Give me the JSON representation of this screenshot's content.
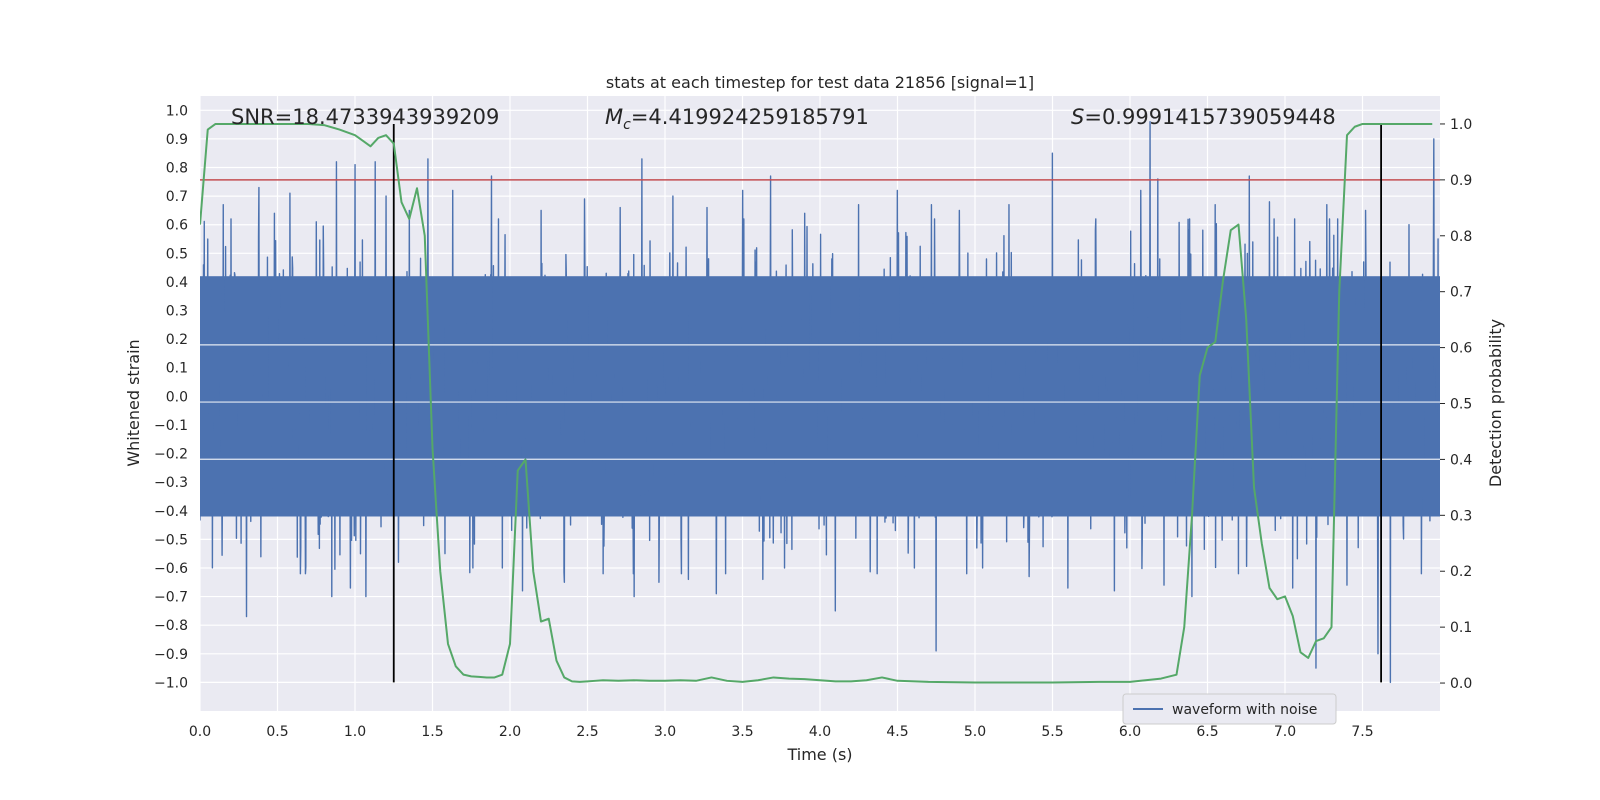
{
  "chart_data": {
    "type": "line",
    "title": "stats at each timestep for test data 21856 [signal=1]",
    "xlabel": "Time (s)",
    "ylabel_left": "Whitened strain",
    "ylabel_right": "Detection probability",
    "xlim": [
      0.0,
      8.0
    ],
    "ylim_left": [
      -1.1,
      1.05
    ],
    "ylim_right": [
      -0.05,
      1.05
    ],
    "x_ticks": [
      0.0,
      0.5,
      1.0,
      1.5,
      2.0,
      2.5,
      3.0,
      3.5,
      4.0,
      4.5,
      5.0,
      5.5,
      6.0,
      6.5,
      7.0,
      7.5
    ],
    "x_tick_labels": [
      "0.0",
      "0.5",
      "1.0",
      "1.5",
      "2.0",
      "2.5",
      "3.0",
      "3.5",
      "4.0",
      "4.5",
      "5.0",
      "5.5",
      "6.0",
      "6.5",
      "7.0",
      "7.5"
    ],
    "y_left_ticks": [
      -1.0,
      -0.9,
      -0.8,
      -0.7,
      -0.6,
      -0.5,
      -0.4,
      -0.3,
      -0.2,
      -0.1,
      0.0,
      0.1,
      0.2,
      0.3,
      0.4,
      0.5,
      0.6,
      0.7,
      0.8,
      0.9,
      1.0
    ],
    "y_left_tick_labels": [
      "−1.0",
      "−0.9",
      "−0.8",
      "−0.7",
      "−0.6",
      "−0.5",
      "−0.4",
      "−0.3",
      "−0.2",
      "−0.1",
      "0.0",
      "0.1",
      "0.2",
      "0.3",
      "0.4",
      "0.5",
      "0.6",
      "0.7",
      "0.8",
      "0.9",
      "1.0"
    ],
    "y_right_ticks": [
      0.0,
      0.1,
      0.2,
      0.3,
      0.4,
      0.5,
      0.6,
      0.7,
      0.8,
      0.9,
      1.0
    ],
    "y_right_tick_labels": [
      "0.0",
      "0.1",
      "0.2",
      "0.3",
      "0.4",
      "0.5",
      "0.6",
      "0.7",
      "0.8",
      "0.9",
      "1.0"
    ],
    "grid": true,
    "legend": {
      "placement": "lower-right",
      "entries": [
        "waveform with noise"
      ]
    },
    "annotations": {
      "snr": "SNR=18.4733943939209",
      "mc_symbol": "M",
      "mc_sub": "c",
      "mc_value": "=4.419924259185791",
      "s_symbol": "S",
      "s_value": "=0.9991415739059448"
    },
    "threshold_line": {
      "axis": "right",
      "y": 0.9,
      "color": "#c44e52"
    },
    "vertical_lines": [
      1.25,
      7.62
    ],
    "waveform": {
      "name": "waveform with noise",
      "color": "#4c72b0",
      "t_range": [
        0.0,
        8.0
      ],
      "core_band": [
        -0.42,
        0.42
      ],
      "spikes": [
        {
          "t": 0.05,
          "y": 0.55
        },
        {
          "t": 0.15,
          "y": 0.67
        },
        {
          "t": 0.2,
          "y": 0.62
        },
        {
          "t": 0.3,
          "y": -0.77
        },
        {
          "t": 0.38,
          "y": 0.73
        },
        {
          "t": 0.48,
          "y": 0.64
        },
        {
          "t": 0.58,
          "y": 0.71
        },
        {
          "t": 0.68,
          "y": -0.62
        },
        {
          "t": 0.75,
          "y": 0.61
        },
        {
          "t": 0.85,
          "y": -0.7
        },
        {
          "t": 0.88,
          "y": 0.82
        },
        {
          "t": 0.97,
          "y": -0.67
        },
        {
          "t": 1.0,
          "y": 0.81
        },
        {
          "t": 1.07,
          "y": -0.7
        },
        {
          "t": 1.13,
          "y": 0.82
        },
        {
          "t": 1.2,
          "y": 0.7
        },
        {
          "t": 1.28,
          "y": -0.58
        },
        {
          "t": 1.35,
          "y": 0.65
        },
        {
          "t": 1.47,
          "y": 0.83
        },
        {
          "t": 1.58,
          "y": -0.55
        },
        {
          "t": 1.63,
          "y": 0.72
        },
        {
          "t": 1.76,
          "y": -0.6
        },
        {
          "t": 1.88,
          "y": 0.77
        },
        {
          "t": 1.95,
          "y": -0.6
        },
        {
          "t": 2.08,
          "y": -0.68
        },
        {
          "t": 2.2,
          "y": 0.65
        },
        {
          "t": 2.35,
          "y": -0.65
        },
        {
          "t": 2.48,
          "y": 0.69
        },
        {
          "t": 2.6,
          "y": -0.62
        },
        {
          "t": 2.71,
          "y": 0.66
        },
        {
          "t": 2.8,
          "y": -0.7
        },
        {
          "t": 2.85,
          "y": 0.83
        },
        {
          "t": 2.96,
          "y": -0.65
        },
        {
          "t": 3.05,
          "y": 0.7
        },
        {
          "t": 3.15,
          "y": -0.64
        },
        {
          "t": 3.27,
          "y": 0.66
        },
        {
          "t": 3.33,
          "y": -0.69
        },
        {
          "t": 3.5,
          "y": 0.72
        },
        {
          "t": 3.63,
          "y": -0.64
        },
        {
          "t": 3.68,
          "y": 0.77
        },
        {
          "t": 3.77,
          "y": -0.6
        },
        {
          "t": 3.9,
          "y": 0.64
        },
        {
          "t": 4.1,
          "y": -0.75
        },
        {
          "t": 4.25,
          "y": 0.67
        },
        {
          "t": 4.37,
          "y": -0.62
        },
        {
          "t": 4.5,
          "y": 0.72
        },
        {
          "t": 4.61,
          "y": -0.6
        },
        {
          "t": 4.72,
          "y": 0.67
        },
        {
          "t": 4.75,
          "y": -0.89
        },
        {
          "t": 4.9,
          "y": 0.65
        },
        {
          "t": 5.05,
          "y": -0.6
        },
        {
          "t": 5.22,
          "y": 0.67
        },
        {
          "t": 5.35,
          "y": -0.63
        },
        {
          "t": 5.5,
          "y": 0.85
        },
        {
          "t": 5.6,
          "y": -0.67
        },
        {
          "t": 5.78,
          "y": 0.62
        },
        {
          "t": 5.9,
          "y": -0.68
        },
        {
          "t": 6.07,
          "y": 0.72
        },
        {
          "t": 6.13,
          "y": 0.96
        },
        {
          "t": 6.18,
          "y": 0.76
        },
        {
          "t": 6.22,
          "y": -0.66
        },
        {
          "t": 6.4,
          "y": -0.7
        },
        {
          "t": 6.55,
          "y": 0.67
        },
        {
          "t": 6.7,
          "y": -0.62
        },
        {
          "t": 6.77,
          "y": 0.77
        },
        {
          "t": 6.9,
          "y": 0.68
        },
        {
          "t": 7.05,
          "y": -0.67
        },
        {
          "t": 7.2,
          "y": -0.95
        },
        {
          "t": 7.27,
          "y": 0.67
        },
        {
          "t": 7.4,
          "y": -0.66
        },
        {
          "t": 7.52,
          "y": 0.65
        },
        {
          "t": 7.6,
          "y": -0.9
        },
        {
          "t": 7.68,
          "y": -1.0
        },
        {
          "t": 7.8,
          "y": 0.6
        },
        {
          "t": 7.88,
          "y": -0.62
        },
        {
          "t": 7.96,
          "y": 0.9
        }
      ]
    },
    "series": [
      {
        "name": "Detection probability",
        "axis": "right",
        "color": "#55a868",
        "x": [
          0.0,
          0.05,
          0.1,
          0.2,
          0.3,
          0.4,
          0.5,
          0.6,
          0.7,
          0.8,
          0.9,
          1.0,
          1.05,
          1.1,
          1.15,
          1.2,
          1.25,
          1.3,
          1.35,
          1.4,
          1.45,
          1.5,
          1.55,
          1.6,
          1.65,
          1.7,
          1.75,
          1.8,
          1.85,
          1.9,
          1.95,
          2.0,
          2.05,
          2.1,
          2.15,
          2.2,
          2.25,
          2.3,
          2.35,
          2.4,
          2.45,
          2.5,
          2.55,
          2.6,
          2.7,
          2.8,
          2.9,
          3.0,
          3.1,
          3.2,
          3.3,
          3.4,
          3.5,
          3.6,
          3.7,
          3.8,
          3.9,
          4.0,
          4.1,
          4.2,
          4.3,
          4.4,
          4.5,
          4.7,
          5.0,
          5.5,
          5.8,
          6.0,
          6.1,
          6.2,
          6.3,
          6.35,
          6.4,
          6.45,
          6.5,
          6.55,
          6.6,
          6.65,
          6.7,
          6.75,
          6.8,
          6.85,
          6.9,
          6.95,
          7.0,
          7.05,
          7.1,
          7.15,
          7.2,
          7.25,
          7.3,
          7.35,
          7.4,
          7.45,
          7.5,
          7.55,
          7.58,
          7.6,
          7.63,
          7.65,
          7.68,
          7.7,
          7.75,
          7.8,
          7.9,
          7.95
        ],
        "y": [
          0.82,
          0.99,
          1.0,
          1.0,
          1.0,
          1.0,
          1.0,
          1.0,
          1.0,
          0.998,
          0.99,
          0.98,
          0.97,
          0.96,
          0.975,
          0.98,
          0.965,
          0.86,
          0.83,
          0.885,
          0.8,
          0.42,
          0.2,
          0.07,
          0.03,
          0.015,
          0.012,
          0.011,
          0.01,
          0.01,
          0.015,
          0.07,
          0.38,
          0.4,
          0.2,
          0.11,
          0.115,
          0.04,
          0.01,
          0.003,
          0.002,
          0.003,
          0.004,
          0.005,
          0.004,
          0.005,
          0.004,
          0.004,
          0.005,
          0.004,
          0.01,
          0.004,
          0.002,
          0.005,
          0.01,
          0.008,
          0.007,
          0.005,
          0.003,
          0.003,
          0.005,
          0.01,
          0.004,
          0.002,
          0.001,
          0.001,
          0.002,
          0.002,
          0.005,
          0.008,
          0.015,
          0.1,
          0.3,
          0.55,
          0.6,
          0.61,
          0.72,
          0.81,
          0.82,
          0.65,
          0.35,
          0.25,
          0.17,
          0.15,
          0.155,
          0.12,
          0.055,
          0.045,
          0.075,
          0.08,
          0.1,
          0.7,
          0.98,
          0.995,
          1.0,
          1.0,
          1.0,
          1.0,
          1.0,
          1.0,
          1.0,
          1.0,
          1.0,
          1.0,
          1.0,
          1.0
        ]
      }
    ]
  }
}
